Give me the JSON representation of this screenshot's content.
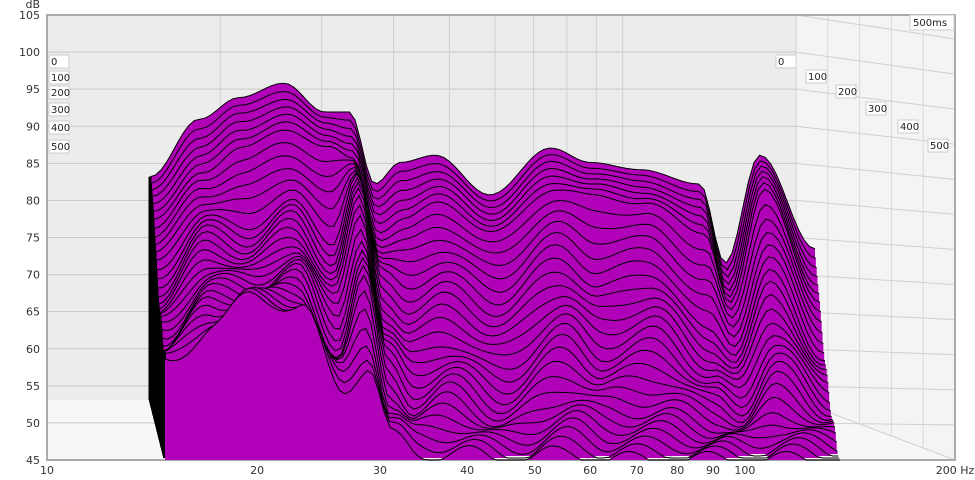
{
  "chart_data": {
    "type": "waterfall",
    "ylabel": "dB",
    "xunit": "Hz",
    "ylim": [
      45,
      105
    ],
    "yticks": [
      "105",
      "100",
      "95",
      "90",
      "85",
      "80",
      "75",
      "70",
      "65",
      "60",
      "55",
      "50",
      "45"
    ],
    "xticks": [
      {
        "f": 10,
        "label": "10"
      },
      {
        "f": 20,
        "label": "20"
      },
      {
        "f": 30,
        "label": "30"
      },
      {
        "f": 40,
        "label": "40"
      },
      {
        "f": 50,
        "label": "50"
      },
      {
        "f": 60,
        "label": "60"
      },
      {
        "f": 70,
        "label": "70"
      },
      {
        "f": 80,
        "label": "80"
      },
      {
        "f": 90,
        "label": "90"
      },
      {
        "f": 100,
        "label": "100"
      },
      {
        "f": 200,
        "label": "200 Hz"
      }
    ],
    "time_labels": [
      "0",
      "100",
      "200",
      "300",
      "400",
      "500"
    ],
    "time_range_label": "500ms",
    "fill_color": "#b000b8",
    "line_color": "#000000",
    "frequencies": [
      15,
      17.5,
      19.8,
      22.8,
      25.9,
      28,
      30.3,
      32.8,
      36.6,
      43.4,
      52.5,
      59.4,
      69.4,
      83.7,
      90.6,
      101,
      120
    ],
    "slices": [
      {
        "t": 0,
        "db": [
          76,
          84,
          87,
          89,
          85,
          85,
          75,
          78,
          79,
          73.5,
          80,
          78,
          77,
          75,
          64,
          79,
          66
        ]
      },
      {
        "t": 100,
        "db": [
          72,
          78,
          82,
          84,
          82,
          80,
          70,
          72,
          74,
          70,
          76,
          75,
          74,
          70,
          60,
          76,
          60
        ]
      },
      {
        "t": 200,
        "db": [
          66,
          74,
          72,
          76,
          70,
          80,
          66,
          64,
          66,
          62,
          68,
          64,
          66,
          58,
          55,
          66,
          54
        ]
      },
      {
        "t": 300,
        "db": [
          62,
          70,
          68,
          72,
          64,
          76,
          60,
          56,
          58,
          54,
          60,
          56,
          58,
          52,
          50,
          58,
          50
        ]
      },
      {
        "t": 400,
        "db": [
          60,
          66,
          66,
          68,
          58,
          68,
          54,
          50,
          52,
          48,
          52,
          50,
          50,
          48,
          47,
          50,
          47
        ]
      },
      {
        "t": 500,
        "db": [
          58,
          64,
          68,
          66,
          55,
          58,
          48,
          46,
          46,
          45,
          46,
          45,
          45,
          45,
          45,
          45,
          45
        ]
      }
    ]
  }
}
